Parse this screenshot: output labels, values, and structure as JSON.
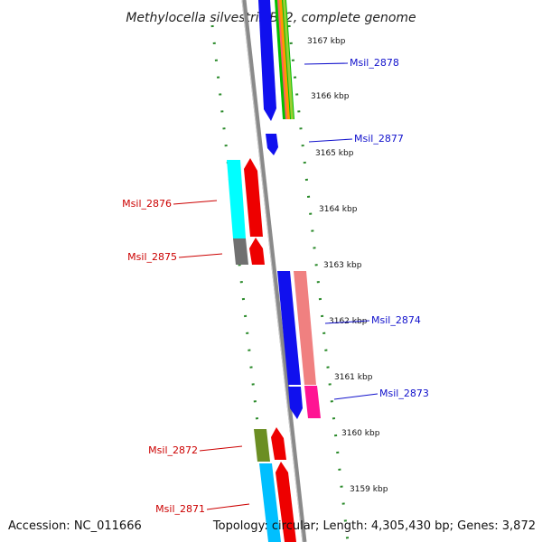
{
  "title": "Methylocella silvestris BL2, complete genome",
  "footer": {
    "accession": "Accession: NC_011666",
    "summary": "Topology: circular; Length: 4,305,430 bp; Genes: 3,872"
  },
  "ticks": [
    "3167 kbp",
    "3166 kbp",
    "3165 kbp",
    "3164 kbp",
    "3163 kbp",
    "3162 kbp",
    "3161 kbp",
    "3160 kbp",
    "3159 kbp"
  ],
  "labels_right": [
    "Msil_2878",
    "Msil_2877",
    "Msil_2874",
    "Msil_2873"
  ],
  "labels_left": [
    "Msil_2876",
    "Msil_2875",
    "Msil_2872",
    "Msil_2871"
  ],
  "colors": {
    "backbone": "#8a8a8a",
    "tick_dots": "#2a8a2a",
    "right_label": "#1111cc",
    "left_label": "#cc0000",
    "blue": "#1010ee",
    "red": "#ee0000",
    "cyan": "#00ffff",
    "gray": "#707070",
    "salmon": "#f08080",
    "magenta": "#ff1493",
    "olive": "#6b8e23",
    "skyblue": "#00bfff"
  }
}
